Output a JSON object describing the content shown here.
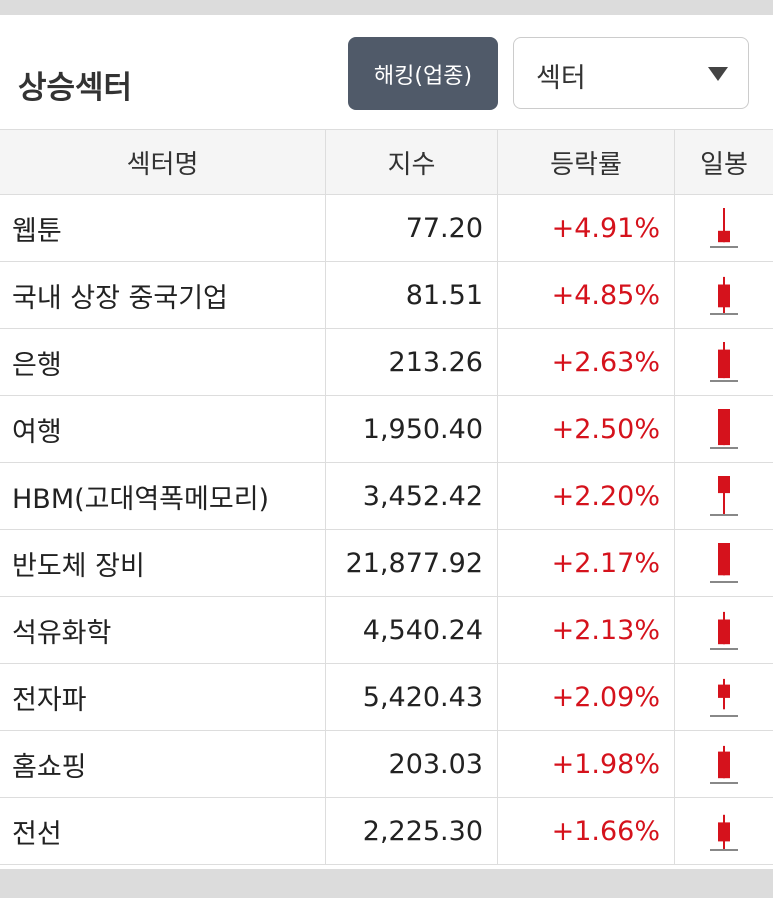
{
  "header": {
    "title": "상승섹터",
    "button": "해킹(업종)",
    "select": "섹터"
  },
  "table": {
    "columns": [
      "섹터명",
      "지수",
      "등락률",
      "일봉"
    ],
    "rows": [
      [
        "웹툰",
        "77.20",
        "+4.91%"
      ],
      [
        "국내 상장 중국기업",
        "81.51",
        "+4.85%"
      ],
      [
        "은행",
        "213.26",
        "+2.63%"
      ],
      [
        "여행",
        "1,950.40",
        "+2.50%"
      ],
      [
        "HBM(고대역폭메모리)",
        "3,452.42",
        "+2.20%"
      ],
      [
        "반도체 장비",
        "21,877.92",
        "+2.17%"
      ],
      [
        "석유화학",
        "4,540.24",
        "+2.13%"
      ],
      [
        "전자파",
        "5,420.43",
        "+2.09%"
      ],
      [
        "홈쇼핑",
        "203.03",
        "+1.98%"
      ],
      [
        "전선",
        "2,225.30",
        "+1.66%"
      ]
    ]
  }
}
